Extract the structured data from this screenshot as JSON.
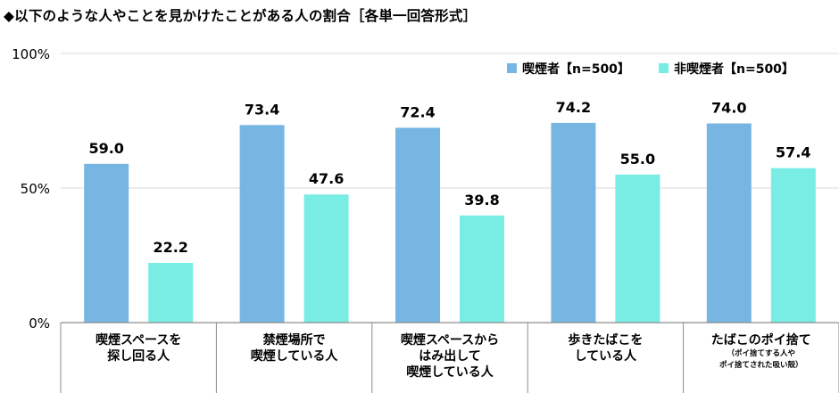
{
  "title": "◆以下のような人やことを見かけたことがある人の割合［各単一回答形式］",
  "colors": {
    "smoker": "#77b6e2",
    "nonsmoker": "#79ece4",
    "grid": "#d9d9d9",
    "axis": "#8c8c8c"
  },
  "chart_data": {
    "type": "bar",
    "title": "◆以下のような人やことを見かけたことがある人の割合［各単一回答形式］",
    "ylim": [
      0,
      100
    ],
    "yticks": [
      "0%",
      "50%",
      "100%"
    ],
    "grid": true,
    "legend_position": "top-right",
    "categories": [
      {
        "lines": [
          "喫煙スペースを",
          "探し回る人"
        ],
        "sub": []
      },
      {
        "lines": [
          "禁煙場所で",
          "喫煙している人"
        ],
        "sub": []
      },
      {
        "lines": [
          "喫煙スペースから",
          "はみ出して",
          "喫煙している人"
        ],
        "sub": []
      },
      {
        "lines": [
          "歩きたばこを",
          "している人"
        ],
        "sub": []
      },
      {
        "lines": [
          "たばこのポイ捨て"
        ],
        "sub": [
          "（ポイ捨てする人や",
          "ポイ捨てされた吸い殻）"
        ]
      }
    ],
    "series": [
      {
        "name": "喫煙者【n=500】",
        "values": [
          59.0,
          73.4,
          72.4,
          74.2,
          74.0
        ],
        "labels": [
          "59.0",
          "73.4",
          "72.4",
          "74.2",
          "74.0"
        ]
      },
      {
        "name": "非喫煙者【n=500】",
        "values": [
          22.2,
          47.6,
          39.8,
          55.0,
          57.4
        ],
        "labels": [
          "22.2",
          "47.6",
          "39.8",
          "55.0",
          "57.4"
        ]
      }
    ]
  }
}
